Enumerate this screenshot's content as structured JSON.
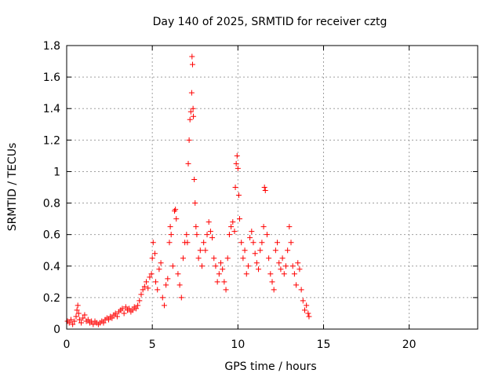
{
  "chart_data": {
    "type": "scatter",
    "title": "Day 140 of 2025, SRMTID for receiver cztg",
    "xlabel": "GPS time / hours",
    "ylabel": "SRMTID / TECUs",
    "xlim": [
      0,
      24
    ],
    "ylim": [
      0,
      1.8
    ],
    "xticks": [
      0,
      5,
      10,
      15,
      20
    ],
    "xtick_labels": [
      "0",
      "5",
      "10",
      "15",
      "20"
    ],
    "yticks": [
      0,
      0.2,
      0.4,
      0.6,
      0.8,
      1.0,
      1.2,
      1.4,
      1.6,
      1.8
    ],
    "ytick_labels": [
      "0",
      "0.2",
      "0.4",
      "0.6",
      "0.8",
      "1",
      "1.2",
      "1.4",
      "1.6",
      "1.8"
    ],
    "grid": true,
    "marker": "+",
    "marker_color": "#ff0000",
    "series": [
      {
        "name": "SRMTID",
        "points": [
          [
            0.05,
            0.05
          ],
          [
            0.15,
            0.04
          ],
          [
            0.25,
            0.06
          ],
          [
            0.35,
            0.03
          ],
          [
            0.45,
            0.05
          ],
          [
            0.55,
            0.08
          ],
          [
            0.6,
            0.12
          ],
          [
            0.65,
            0.15
          ],
          [
            0.7,
            0.1
          ],
          [
            0.75,
            0.06
          ],
          [
            0.85,
            0.04
          ],
          [
            0.95,
            0.07
          ],
          [
            1.05,
            0.09
          ],
          [
            1.15,
            0.05
          ],
          [
            1.25,
            0.06
          ],
          [
            1.35,
            0.04
          ],
          [
            1.45,
            0.05
          ],
          [
            1.55,
            0.03
          ],
          [
            1.65,
            0.05
          ],
          [
            1.75,
            0.04
          ],
          [
            1.85,
            0.03
          ],
          [
            1.95,
            0.04
          ],
          [
            2.05,
            0.05
          ],
          [
            2.15,
            0.04
          ],
          [
            2.25,
            0.06
          ],
          [
            2.35,
            0.07
          ],
          [
            2.45,
            0.06
          ],
          [
            2.55,
            0.08
          ],
          [
            2.65,
            0.07
          ],
          [
            2.75,
            0.09
          ],
          [
            2.85,
            0.1
          ],
          [
            2.95,
            0.08
          ],
          [
            3.05,
            0.11
          ],
          [
            3.15,
            0.12
          ],
          [
            3.25,
            0.13
          ],
          [
            3.35,
            0.1
          ],
          [
            3.45,
            0.14
          ],
          [
            3.55,
            0.12
          ],
          [
            3.65,
            0.13
          ],
          [
            3.75,
            0.11
          ],
          [
            3.85,
            0.12
          ],
          [
            3.95,
            0.14
          ],
          [
            4.05,
            0.13
          ],
          [
            4.15,
            0.15
          ],
          [
            4.25,
            0.18
          ],
          [
            4.35,
            0.22
          ],
          [
            4.45,
            0.25
          ],
          [
            4.55,
            0.27
          ],
          [
            4.65,
            0.3
          ],
          [
            4.75,
            0.26
          ],
          [
            4.85,
            0.33
          ],
          [
            4.95,
            0.35
          ],
          [
            5.0,
            0.45
          ],
          [
            5.05,
            0.55
          ],
          [
            5.15,
            0.48
          ],
          [
            5.2,
            0.3
          ],
          [
            5.3,
            0.25
          ],
          [
            5.4,
            0.38
          ],
          [
            5.5,
            0.42
          ],
          [
            5.6,
            0.2
          ],
          [
            5.7,
            0.15
          ],
          [
            5.8,
            0.28
          ],
          [
            5.9,
            0.32
          ],
          [
            6.0,
            0.55
          ],
          [
            6.05,
            0.65
          ],
          [
            6.1,
            0.6
          ],
          [
            6.2,
            0.4
          ],
          [
            6.3,
            0.75
          ],
          [
            6.35,
            0.76
          ],
          [
            6.4,
            0.7
          ],
          [
            6.5,
            0.35
          ],
          [
            6.6,
            0.28
          ],
          [
            6.7,
            0.2
          ],
          [
            6.8,
            0.45
          ],
          [
            6.9,
            0.55
          ],
          [
            7.0,
            0.6
          ],
          [
            7.05,
            0.55
          ],
          [
            7.1,
            1.05
          ],
          [
            7.15,
            1.2
          ],
          [
            7.2,
            1.33
          ],
          [
            7.25,
            1.38
          ],
          [
            7.3,
            1.5
          ],
          [
            7.32,
            1.73
          ],
          [
            7.35,
            1.68
          ],
          [
            7.38,
            1.4
          ],
          [
            7.4,
            1.35
          ],
          [
            7.45,
            0.95
          ],
          [
            7.5,
            0.8
          ],
          [
            7.55,
            0.65
          ],
          [
            7.6,
            0.6
          ],
          [
            7.7,
            0.45
          ],
          [
            7.8,
            0.5
          ],
          [
            7.9,
            0.4
          ],
          [
            8.0,
            0.55
          ],
          [
            8.1,
            0.5
          ],
          [
            8.2,
            0.6
          ],
          [
            8.3,
            0.68
          ],
          [
            8.4,
            0.62
          ],
          [
            8.5,
            0.58
          ],
          [
            8.6,
            0.45
          ],
          [
            8.7,
            0.4
          ],
          [
            8.8,
            0.3
          ],
          [
            8.9,
            0.35
          ],
          [
            9.0,
            0.42
          ],
          [
            9.1,
            0.38
          ],
          [
            9.2,
            0.3
          ],
          [
            9.3,
            0.25
          ],
          [
            9.4,
            0.45
          ],
          [
            9.5,
            0.6
          ],
          [
            9.6,
            0.65
          ],
          [
            9.7,
            0.68
          ],
          [
            9.8,
            0.62
          ],
          [
            9.85,
            0.9
          ],
          [
            9.9,
            1.05
          ],
          [
            9.95,
            1.1
          ],
          [
            10.0,
            1.02
          ],
          [
            10.05,
            0.85
          ],
          [
            10.1,
            0.7
          ],
          [
            10.2,
            0.55
          ],
          [
            10.3,
            0.45
          ],
          [
            10.4,
            0.5
          ],
          [
            10.5,
            0.35
          ],
          [
            10.6,
            0.4
          ],
          [
            10.7,
            0.58
          ],
          [
            10.8,
            0.62
          ],
          [
            10.9,
            0.55
          ],
          [
            11.0,
            0.48
          ],
          [
            11.1,
            0.42
          ],
          [
            11.2,
            0.38
          ],
          [
            11.3,
            0.5
          ],
          [
            11.4,
            0.55
          ],
          [
            11.5,
            0.65
          ],
          [
            11.55,
            0.9
          ],
          [
            11.6,
            0.88
          ],
          [
            11.7,
            0.6
          ],
          [
            11.8,
            0.45
          ],
          [
            11.9,
            0.35
          ],
          [
            12.0,
            0.3
          ],
          [
            12.1,
            0.25
          ],
          [
            12.2,
            0.5
          ],
          [
            12.3,
            0.55
          ],
          [
            12.4,
            0.42
          ],
          [
            12.5,
            0.38
          ],
          [
            12.6,
            0.45
          ],
          [
            12.7,
            0.35
          ],
          [
            12.8,
            0.4
          ],
          [
            12.9,
            0.5
          ],
          [
            13.0,
            0.65
          ],
          [
            13.1,
            0.55
          ],
          [
            13.2,
            0.4
          ],
          [
            13.3,
            0.35
          ],
          [
            13.4,
            0.28
          ],
          [
            13.5,
            0.42
          ],
          [
            13.6,
            0.38
          ],
          [
            13.7,
            0.25
          ],
          [
            13.8,
            0.18
          ],
          [
            13.9,
            0.12
          ],
          [
            14.0,
            0.15
          ],
          [
            14.1,
            0.1
          ],
          [
            14.15,
            0.08
          ]
        ]
      }
    ]
  }
}
